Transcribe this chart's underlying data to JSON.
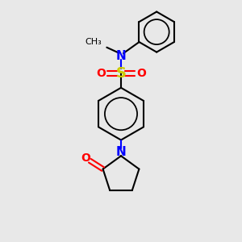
{
  "background_color": "#e8e8e8",
  "bond_color": "#000000",
  "atom_colors": {
    "N": "#0000ff",
    "O": "#ff0000",
    "S": "#cccc00",
    "C": "#000000"
  },
  "figsize": [
    3.0,
    3.0
  ],
  "dpi": 100
}
